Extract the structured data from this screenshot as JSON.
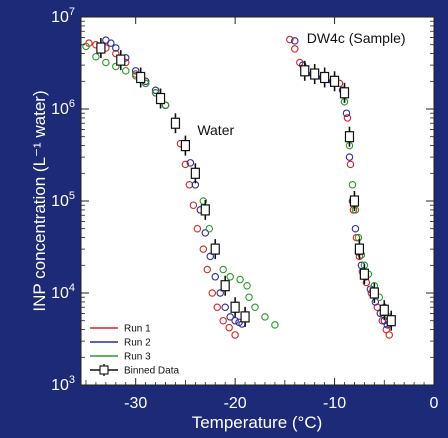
{
  "chart_data": {
    "type": "scatter",
    "title": "",
    "xlabel": "Temperature (°C)",
    "ylabel": "INP concentration (L⁻¹ water)",
    "xlim": [
      -35.5,
      0
    ],
    "ylim": [
      1000,
      10000000
    ],
    "yscale": "log",
    "grid": false,
    "legend_position": "bottom-left",
    "x_ticks": [
      -30,
      -20,
      -10,
      0
    ],
    "x_tick_labels": [
      "-30",
      "-20",
      "-10",
      "0"
    ],
    "y_ticks": [
      1000,
      10000,
      100000,
      1000000,
      10000000
    ],
    "y_tick_labels": [
      {
        "base": "10",
        "exp": "3"
      },
      {
        "base": "10",
        "exp": "4"
      },
      {
        "base": "10",
        "exp": "5"
      },
      {
        "base": "10",
        "exp": "6"
      },
      {
        "base": "10",
        "exp": "7"
      }
    ],
    "annotations": [
      {
        "text": "DW4c (Sample)",
        "x": -12.8,
        "y": 5200000
      },
      {
        "text": "Water",
        "x": -23.8,
        "y": 520000
      }
    ],
    "legend": [
      {
        "label": "Run 1",
        "style": "line",
        "color": "#d82424"
      },
      {
        "label": "Run 2",
        "style": "line",
        "color": "#2c2c9e"
      },
      {
        "label": "Run 3",
        "style": "line",
        "color": "#2a9a2a"
      },
      {
        "label": "Binned Data",
        "style": "errorbar",
        "color": "#111111"
      }
    ],
    "series": [
      {
        "name": "Run 1",
        "color": "#d82424",
        "points": [
          [
            -34.7,
            5200000
          ],
          [
            -34.0,
            5000000
          ],
          [
            -33.0,
            4600000
          ],
          [
            -32.0,
            4000000
          ],
          [
            -31.0,
            3200000
          ],
          [
            -30.0,
            2400000
          ],
          [
            -29.0,
            1900000
          ],
          [
            -28.0,
            1500000
          ],
          [
            -27.0,
            1100000
          ],
          [
            -26.0,
            700000
          ],
          [
            -25.5,
            420000
          ],
          [
            -25.0,
            250000
          ],
          [
            -24.6,
            150000
          ],
          [
            -24.2,
            90000
          ],
          [
            -23.8,
            50000
          ],
          [
            -23.2,
            30000
          ],
          [
            -22.8,
            18000
          ],
          [
            -22.3,
            10000
          ],
          [
            -21.8,
            7000
          ],
          [
            -21.2,
            5000
          ],
          [
            -20.6,
            4200
          ],
          [
            -20.0,
            3500
          ],
          [
            -14.5,
            5700000
          ],
          [
            -14.0,
            4500000
          ],
          [
            -13.5,
            3200000
          ],
          [
            -13.0,
            2600000
          ],
          [
            -12.0,
            2400000
          ],
          [
            -11.0,
            2200000
          ],
          [
            -10.0,
            2000000
          ],
          [
            -9.5,
            1900000
          ],
          [
            -9.0,
            1500000
          ],
          [
            -8.7,
            800000
          ],
          [
            -8.4,
            250000
          ],
          [
            -8.1,
            80000
          ],
          [
            -7.8,
            40000
          ],
          [
            -7.5,
            25000
          ],
          [
            -7.2,
            17000
          ],
          [
            -6.8,
            13000
          ],
          [
            -6.3,
            10000
          ],
          [
            -5.7,
            7000
          ],
          [
            -5.2,
            5000
          ],
          [
            -4.8,
            4000
          ],
          [
            -4.5,
            3500
          ]
        ]
      },
      {
        "name": "Run 2",
        "color": "#2c2c9e",
        "points": [
          [
            -33.0,
            5600000
          ],
          [
            -32.5,
            5200000
          ],
          [
            -32.0,
            4600000
          ],
          [
            -31.0,
            3600000
          ],
          [
            -30.0,
            2600000
          ],
          [
            -29.0,
            2000000
          ],
          [
            -28.0,
            1600000
          ],
          [
            -27.0,
            1100000
          ],
          [
            -26.0,
            700000
          ],
          [
            -25.0,
            420000
          ],
          [
            -24.5,
            260000
          ],
          [
            -24.0,
            150000
          ],
          [
            -23.5,
            80000
          ],
          [
            -23.0,
            45000
          ],
          [
            -22.5,
            25000
          ],
          [
            -22.0,
            15000
          ],
          [
            -21.5,
            10000
          ],
          [
            -21.0,
            7000
          ],
          [
            -20.5,
            5500
          ],
          [
            -20.0,
            5000
          ],
          [
            -19.6,
            4800
          ],
          [
            -19.3,
            4600
          ],
          [
            -14.0,
            5500000
          ],
          [
            -13.2,
            3000000
          ],
          [
            -12.2,
            2400000
          ],
          [
            -11.2,
            2200000
          ],
          [
            -10.2,
            2000000
          ],
          [
            -9.2,
            1600000
          ],
          [
            -8.8,
            900000
          ],
          [
            -8.5,
            300000
          ],
          [
            -8.2,
            100000
          ],
          [
            -7.9,
            50000
          ],
          [
            -7.6,
            28000
          ],
          [
            -7.3,
            20000
          ],
          [
            -6.9,
            15000
          ],
          [
            -6.4,
            11000
          ],
          [
            -5.9,
            8000
          ],
          [
            -5.4,
            6000
          ],
          [
            -5.0,
            5000
          ],
          [
            -4.7,
            4500
          ]
        ]
      },
      {
        "name": "Run 3",
        "color": "#2a9a2a",
        "points": [
          [
            -35.0,
            4800000
          ],
          [
            -34.0,
            3700000
          ],
          [
            -33.0,
            3200000
          ],
          [
            -32.0,
            2900000
          ],
          [
            -31.0,
            2600000
          ],
          [
            -30.0,
            2300000
          ],
          [
            -29.0,
            1900000
          ],
          [
            -28.0,
            1500000
          ],
          [
            -27.0,
            1100000
          ],
          [
            -26.0,
            700000
          ],
          [
            -25.0,
            400000
          ],
          [
            -24.0,
            200000
          ],
          [
            -23.2,
            100000
          ],
          [
            -22.6,
            50000
          ],
          [
            -22.0,
            30000
          ],
          [
            -21.2,
            18000
          ],
          [
            -20.5,
            15000
          ],
          [
            -19.5,
            14000
          ],
          [
            -18.8,
            12000
          ],
          [
            -18.6,
            9000
          ],
          [
            -18.0,
            7000
          ],
          [
            -17.0,
            5500
          ],
          [
            -16.0,
            4500
          ],
          [
            -9.0,
            1200000
          ],
          [
            -8.5,
            400000
          ],
          [
            -8.2,
            150000
          ],
          [
            -7.9,
            80000
          ],
          [
            -7.6,
            40000
          ],
          [
            -7.3,
            26000
          ],
          [
            -7.0,
            20000
          ],
          [
            -6.6,
            16000
          ],
          [
            -6.0,
            12000
          ],
          [
            -5.5,
            9000
          ],
          [
            -5.0,
            7000
          ],
          [
            -4.6,
            5500
          ]
        ]
      },
      {
        "name": "Binned Data",
        "color": "#111111",
        "points": [
          [
            -33.5,
            4600000
          ],
          [
            -31.5,
            3400000
          ],
          [
            -29.5,
            2200000
          ],
          [
            -27.5,
            1300000
          ],
          [
            -26.0,
            700000
          ],
          [
            -25.0,
            400000
          ],
          [
            -24.0,
            200000
          ],
          [
            -23.0,
            80000
          ],
          [
            -22.0,
            30000
          ],
          [
            -21.0,
            12000
          ],
          [
            -20.0,
            7000
          ],
          [
            -19.0,
            5500
          ],
          [
            -13.0,
            2600000
          ],
          [
            -12.0,
            2400000
          ],
          [
            -11.0,
            2200000
          ],
          [
            -10.0,
            2000000
          ],
          [
            -9.0,
            1500000
          ],
          [
            -8.5,
            500000
          ],
          [
            -8.0,
            100000
          ],
          [
            -7.5,
            30000
          ],
          [
            -7.0,
            16000
          ],
          [
            -6.0,
            10000
          ],
          [
            -5.0,
            6500
          ],
          [
            -4.3,
            5000
          ]
        ]
      }
    ]
  }
}
